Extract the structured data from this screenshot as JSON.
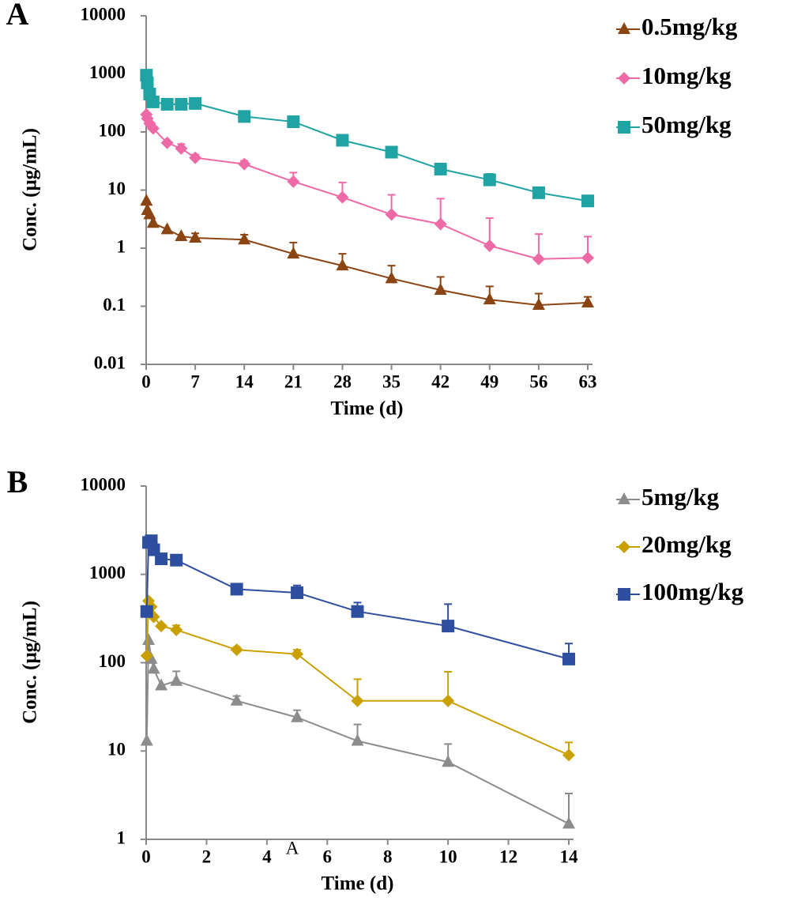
{
  "chart_data": [
    {
      "type": "line",
      "panel_label": "A",
      "y_label": "Conc. (μg/mL)",
      "x_label": "Time (d)",
      "log_scale": true,
      "xlim": [
        0,
        63
      ],
      "xticks": [
        0,
        7,
        14,
        21,
        28,
        35,
        42,
        49,
        56,
        63
      ],
      "ylim": [
        0.01,
        10000
      ],
      "yticks": [
        0.01,
        0.1,
        1,
        10,
        100,
        1000,
        10000
      ],
      "x": [
        0.04,
        0.17,
        0.5,
        1,
        3,
        5,
        7,
        14,
        21,
        28,
        35,
        42,
        49,
        56,
        63
      ],
      "series": [
        {
          "name": "0.5mg/kg",
          "color": "#8b4513",
          "marker": "triangle",
          "values": [
            6.5,
            4.5,
            3.8,
            2.7,
            2.1,
            1.6,
            1.5,
            1.4,
            0.8,
            0.5,
            0.3,
            0.19,
            0.13,
            0.105,
            0.115
          ],
          "errors": [
            null,
            null,
            null,
            null,
            null,
            null,
            0.3,
            0.3,
            0.45,
            0.3,
            0.2,
            0.13,
            0.09,
            0.06,
            0.03
          ]
        },
        {
          "name": "10mg/kg",
          "color": "#ee6aa7",
          "marker": "diamond",
          "values": [
            200,
            170,
            140,
            115,
            65,
            52,
            36,
            28,
            14,
            7.5,
            3.8,
            2.6,
            1.1,
            0.65,
            0.68
          ],
          "errors": [
            null,
            null,
            null,
            null,
            null,
            10,
            5,
            4,
            6,
            6,
            4.5,
            4.5,
            2.2,
            1.1,
            0.9
          ]
        },
        {
          "name": "50mg/kg",
          "color": "#1fa3a3",
          "marker": "square",
          "values": [
            950,
            700,
            450,
            330,
            300,
            300,
            310,
            185,
            150,
            72,
            45,
            23,
            15,
            9,
            6.5
          ],
          "errors": [
            null,
            null,
            null,
            null,
            null,
            null,
            null,
            20,
            20,
            12,
            6,
            5,
            4,
            1.5,
            1
          ]
        }
      ]
    },
    {
      "type": "line",
      "panel_label": "B",
      "y_label": "Conc. (μg/mL)",
      "x_label": "Time (d)",
      "log_scale": true,
      "annotation": "A",
      "xlim": [
        0,
        14
      ],
      "xticks": [
        0,
        2,
        4,
        6,
        8,
        10,
        12,
        14
      ],
      "ylim": [
        1,
        10000
      ],
      "yticks": [
        1,
        10,
        100,
        1000,
        10000
      ],
      "x": [
        0.02,
        0.08,
        0.17,
        0.25,
        0.5,
        1,
        3,
        5,
        7,
        10,
        14
      ],
      "series": [
        {
          "name": "5mg/kg",
          "color": "#8c8c8c",
          "marker": "triangle",
          "values": [
            13,
            180,
            110,
            85,
            55,
            62,
            37,
            24,
            13,
            7.5,
            1.5
          ],
          "errors": [
            null,
            null,
            null,
            null,
            null,
            18,
            5,
            5,
            7,
            4.5,
            1.8
          ]
        },
        {
          "name": "20mg/kg",
          "color": "#c9a000",
          "marker": "diamond",
          "values": [
            120,
            500,
            430,
            330,
            260,
            235,
            140,
            125,
            37,
            37,
            9
          ],
          "errors": [
            null,
            null,
            null,
            null,
            null,
            30,
            10,
            15,
            28,
            42,
            3.5
          ]
        },
        {
          "name": "100mg/kg",
          "color": "#2e4f9f",
          "marker": "square",
          "values": [
            380,
            2300,
            2400,
            1900,
            1500,
            1450,
            680,
            620,
            380,
            260,
            110
          ],
          "errors": [
            null,
            null,
            null,
            null,
            null,
            100,
            60,
            130,
            100,
            200,
            55
          ]
        }
      ]
    }
  ]
}
